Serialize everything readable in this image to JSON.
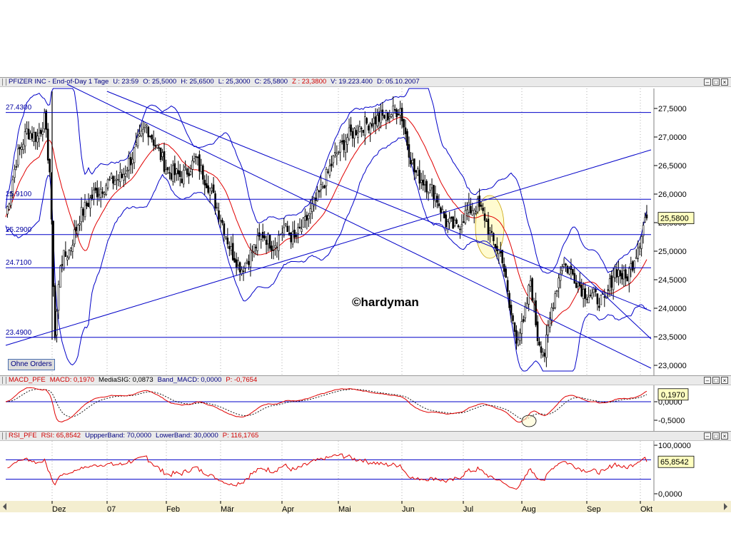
{
  "main_panel": {
    "title_parts": [
      {
        "text": "PFIZER INC - End-of-Day 1 Tage",
        "color": "blue"
      },
      {
        "text": "U: 23:59",
        "color": "blue"
      },
      {
        "text": "O: 25,5000",
        "color": "blue"
      },
      {
        "text": "H: 25,6500",
        "color": "blue"
      },
      {
        "text": "L: 25,3000",
        "color": "blue"
      },
      {
        "text": "C: 25,5800",
        "color": "blue"
      },
      {
        "text": "Z : 23,3800",
        "color": "red"
      },
      {
        "text": "V: 19.223.400",
        "color": "blue"
      },
      {
        "text": "D: 05.10.2007",
        "color": "blue"
      }
    ],
    "y_ticks": [
      "27,5000",
      "27,0000",
      "26,5000",
      "26,0000",
      "25,5000",
      "25,0000",
      "24,5000",
      "24,0000",
      "23,5000",
      "23,0000"
    ],
    "last_price_label": "25,5800",
    "horizontal_line_labels": [
      "27.4300",
      "25.9100",
      "25.2900",
      "24.7100",
      "23.4900"
    ],
    "watermark": "©hardyman",
    "orders_button": "Ohne Orders"
  },
  "macd_panel": {
    "title_parts": [
      {
        "text": "MACD_PFE",
        "color": "red"
      },
      {
        "text": "MACD: 0,1970",
        "color": "red"
      },
      {
        "text": "MediaSIG: 0,0873",
        "color": "black"
      },
      {
        "text": "Band_MACD: 0,0000",
        "color": "blue"
      },
      {
        "text": "P: -0,7654",
        "color": "red"
      }
    ],
    "y_ticks": [
      "0,0000",
      "-0,5000"
    ],
    "last_value_label": "0,1970"
  },
  "rsi_panel": {
    "title_parts": [
      {
        "text": "RSI_PFE",
        "color": "red"
      },
      {
        "text": "RSI: 65,8542",
        "color": "red"
      },
      {
        "text": "UppperBand: 70,0000",
        "color": "blue"
      },
      {
        "text": "LowerBand: 30,0000",
        "color": "blue"
      },
      {
        "text": "P: 116,1765",
        "color": "red"
      }
    ],
    "y_ticks": [
      "100,0000",
      "0,0000"
    ],
    "last_value_label": "65,8542"
  },
  "x_axis_labels": [
    "Dez",
    "07",
    "Feb",
    "Mär",
    "Apr",
    "Mai",
    "Jun",
    "Jul",
    "Aug",
    "Sep",
    "Okt"
  ],
  "colors": {
    "candle": "#000000",
    "moving_average": "#e00000",
    "bollinger": "#0000c8",
    "trend_lines": "#0000c8",
    "highlight": "#fffbd0",
    "axis_bar": "#f4eed0",
    "last_value_box": "#ffffc0"
  },
  "chart_data": {
    "type": "candlestick",
    "symbol": "PFIZER INC",
    "interval": "End-of-Day 1 Tage",
    "last_bar": {
      "date": "05.10.2007",
      "open": 25.5,
      "high": 25.65,
      "low": 25.3,
      "close": 25.58,
      "volume": 19223400
    },
    "months": [
      "Dez",
      "07",
      "Feb",
      "Mär",
      "Apr",
      "Mai",
      "Jun",
      "Jul",
      "Aug",
      "Sep",
      "Okt"
    ],
    "close_path": [
      [
        0,
        25.6
      ],
      [
        6,
        26.6
      ],
      [
        12,
        27.1
      ],
      [
        18,
        27.0
      ],
      [
        22,
        27.3
      ],
      [
        25,
        26.4
      ],
      [
        28,
        23.5
      ],
      [
        31,
        24.8
      ],
      [
        36,
        25.0
      ],
      [
        42,
        25.6
      ],
      [
        50,
        26.0
      ],
      [
        58,
        26.2
      ],
      [
        66,
        26.3
      ],
      [
        74,
        26.8
      ],
      [
        80,
        27.2
      ],
      [
        86,
        26.8
      ],
      [
        92,
        26.4
      ],
      [
        100,
        26.3
      ],
      [
        108,
        26.6
      ],
      [
        116,
        26.1
      ],
      [
        122,
        25.6
      ],
      [
        128,
        25.0
      ],
      [
        134,
        24.7
      ],
      [
        140,
        25.0
      ],
      [
        146,
        25.3
      ],
      [
        152,
        25.1
      ],
      [
        158,
        25.4
      ],
      [
        164,
        25.2
      ],
      [
        170,
        25.5
      ],
      [
        178,
        26.0
      ],
      [
        186,
        26.6
      ],
      [
        194,
        27.0
      ],
      [
        202,
        27.2
      ],
      [
        210,
        27.3
      ],
      [
        218,
        27.4
      ],
      [
        224,
        27.5
      ],
      [
        228,
        26.9
      ],
      [
        232,
        26.4
      ],
      [
        238,
        26.2
      ],
      [
        244,
        26.0
      ],
      [
        250,
        25.5
      ],
      [
        256,
        25.4
      ],
      [
        262,
        25.7
      ],
      [
        268,
        25.8
      ],
      [
        272,
        25.6
      ],
      [
        276,
        25.2
      ],
      [
        282,
        24.9
      ],
      [
        286,
        24.0
      ],
      [
        290,
        23.5
      ],
      [
        294,
        23.7
      ],
      [
        298,
        24.5
      ],
      [
        302,
        23.5
      ],
      [
        306,
        23.2
      ],
      [
        310,
        24.0
      ],
      [
        316,
        24.8
      ],
      [
        322,
        24.6
      ],
      [
        328,
        24.3
      ],
      [
        334,
        24.2
      ],
      [
        340,
        24.1
      ],
      [
        346,
        24.7
      ],
      [
        352,
        24.5
      ],
      [
        356,
        24.8
      ],
      [
        360,
        25.2
      ],
      [
        363,
        25.58
      ]
    ],
    "horizontal_levels": [
      27.43,
      25.91,
      25.29,
      24.71,
      23.49
    ],
    "y_range": [
      22.9,
      27.85
    ],
    "macd": {
      "last": 0.197,
      "signal": 0.0873,
      "band": 0.0,
      "ticks": [
        0.0,
        -0.5
      ]
    },
    "rsi": {
      "last": 65.8542,
      "upper_band": 70,
      "lower_band": 30,
      "ticks": [
        100,
        0
      ]
    }
  }
}
